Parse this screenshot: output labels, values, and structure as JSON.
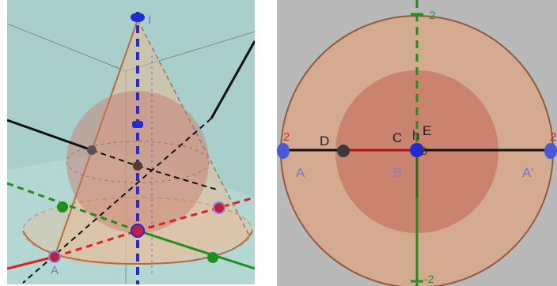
{
  "left_view": {
    "point_labels": {
      "apex": "I",
      "base_left": "A"
    }
  },
  "right_view": {
    "point_labels": {
      "A": "A",
      "A_prime": "A'",
      "D": "D",
      "C": "C",
      "h": "h",
      "E": "E",
      "B": "B",
      "Bp": "B"
    },
    "axis_tick_labels": {
      "top": "-2",
      "bottom": "-2",
      "left": "2",
      "right": "2"
    }
  },
  "colors": {
    "left_background": "#a9cfcd",
    "right_background": "#b9b9b9",
    "cone_fill": "#e7bb98",
    "cone_edge": "#b86a3e",
    "sphere_fill": "#c9776a",
    "z_axis": "#2a2ad0",
    "red_axis": "#e02020",
    "green_axis": "#1f8f1f",
    "black_axis": "#111111",
    "point_blue": "#1f2bd6",
    "point_dark": "#444444",
    "point_green": "#1f8f1f",
    "point_red": "#d02020",
    "label_blue": "#7777cc",
    "label_red": "#e02020",
    "label_green": "#1f8f1f"
  }
}
